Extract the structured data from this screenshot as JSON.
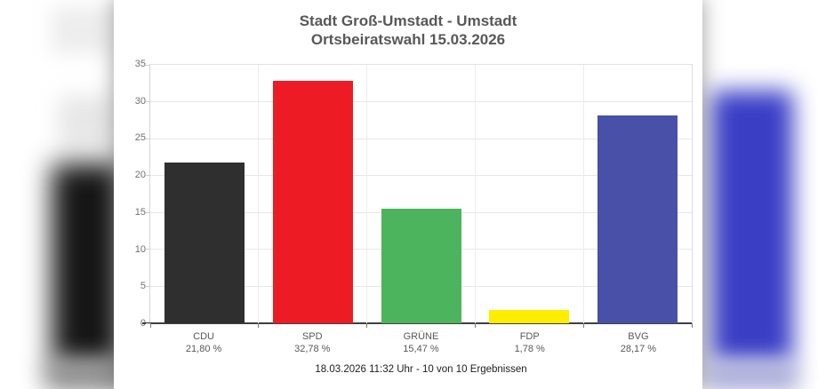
{
  "chart_data": {
    "type": "bar",
    "title": "Stadt Groß-Umstadt - Umstadt",
    "subtitle": "Ortsbeiratswahl 15.03.2026",
    "footnote": "18.03.2026 11:32 Uhr - 10 von 10 Ergebnissen",
    "categories": [
      "CDU",
      "SPD",
      "GRÜNE",
      "FDP",
      "BVG"
    ],
    "values": [
      21.8,
      32.78,
      15.47,
      1.78,
      28.17
    ],
    "value_labels": [
      "21,80 %",
      "32,78 %",
      "15,47 %",
      "1,78 %",
      "28,17 %"
    ],
    "bar_colors": [
      "#2f2f2f",
      "#ed1c24",
      "#4cb45c",
      "#ffed00",
      "#4850a8"
    ],
    "xlabel": "",
    "ylabel": "",
    "ylim": [
      0,
      35
    ],
    "yticks": [
      0,
      5,
      10,
      15,
      20,
      25,
      30,
      35
    ],
    "grid": "on",
    "legend": "none"
  },
  "backdrop": {
    "style": "blurred copy of chart",
    "left_blob_color": "#161616",
    "right_blob_color": "#3a3ec5"
  }
}
